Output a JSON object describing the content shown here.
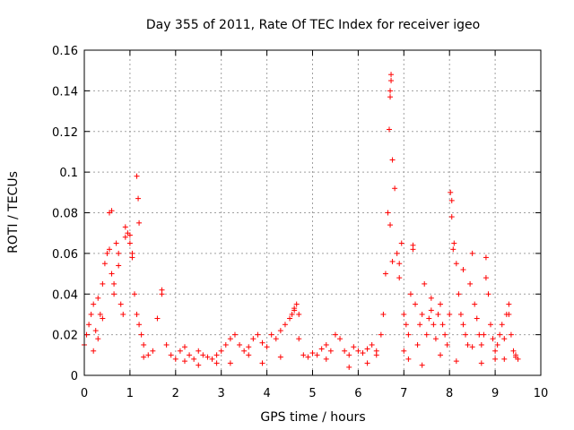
{
  "chart_data": {
    "type": "scatter",
    "title": "Day 355 of 2011, Rate Of TEC Index for receiver igeo",
    "xlabel": "GPS time / hours",
    "ylabel": "ROTI / TECUs",
    "xlim": [
      0,
      10
    ],
    "ylim": [
      0,
      0.16
    ],
    "xticks": [
      0,
      1,
      2,
      3,
      4,
      5,
      6,
      7,
      8,
      9,
      10
    ],
    "xtick_labels": [
      "0",
      "1",
      "2",
      "3",
      "4",
      "5",
      "6",
      "7",
      "8",
      "9",
      "10"
    ],
    "yticks": [
      0,
      0.02,
      0.04,
      0.06,
      0.08,
      0.1,
      0.12,
      0.14,
      0.16
    ],
    "ytick_labels": [
      "0",
      "0.02",
      "0.04",
      "0.06",
      "0.08",
      "0.1",
      "0.12",
      "0.14",
      "0.16"
    ],
    "grid": true,
    "marker": "+",
    "color": "#ff0000",
    "series": [
      {
        "name": "ROTI",
        "x": [
          0.0,
          0.05,
          0.1,
          0.15,
          0.2,
          0.25,
          0.3,
          0.35,
          0.4,
          0.45,
          0.5,
          0.55,
          0.6,
          0.65,
          0.7,
          0.75,
          0.8,
          0.85,
          0.9,
          0.95,
          1.0,
          1.05,
          1.1,
          1.15,
          1.2,
          1.25,
          1.3,
          1.4,
          1.5,
          1.6,
          1.7,
          1.8,
          1.9,
          2.0,
          2.1,
          2.2,
          2.3,
          2.4,
          2.5,
          2.6,
          2.7,
          2.8,
          2.9,
          3.0,
          3.1,
          3.2,
          3.3,
          3.4,
          3.5,
          3.6,
          3.7,
          3.8,
          3.9,
          4.0,
          4.1,
          4.2,
          4.3,
          4.4,
          4.5,
          4.55,
          4.6,
          4.65,
          4.7,
          4.8,
          4.9,
          5.0,
          5.1,
          5.2,
          5.3,
          5.4,
          5.5,
          5.6,
          5.7,
          5.8,
          5.9,
          6.0,
          6.1,
          6.2,
          6.3,
          6.4,
          6.5,
          6.55,
          6.6,
          6.65,
          6.7,
          6.72,
          6.75,
          6.8,
          6.85,
          6.9,
          6.95,
          7.0,
          7.05,
          7.1,
          7.15,
          7.2,
          7.25,
          7.3,
          7.35,
          7.4,
          7.45,
          7.5,
          7.55,
          7.6,
          7.65,
          7.7,
          7.75,
          7.8,
          7.85,
          7.9,
          7.95,
          8.0,
          8.02,
          8.05,
          8.1,
          8.15,
          8.2,
          8.25,
          8.3,
          8.35,
          8.4,
          8.45,
          8.5,
          8.55,
          8.6,
          8.65,
          8.7,
          8.75,
          8.8,
          8.85,
          8.9,
          8.95,
          9.0,
          9.05,
          9.1,
          9.15,
          9.2,
          9.25,
          9.3,
          9.35,
          9.4,
          9.45,
          9.5,
          0.6,
          0.9,
          1.0,
          1.15,
          1.18,
          0.55,
          0.65,
          0.75,
          1.05,
          1.2,
          0.4,
          0.3,
          1.7,
          4.6,
          4.7,
          6.68,
          6.7,
          6.72,
          6.7,
          6.75,
          6.9,
          7.2,
          7.6,
          8.05,
          8.08,
          8.3,
          8.8,
          9.3,
          7.0,
          7.8,
          8.5,
          9.0,
          0.2,
          2.5,
          3.2,
          3.6,
          5.3,
          6.2,
          7.4,
          8.7,
          9.2,
          1.3,
          2.2,
          2.9,
          3.9,
          4.3,
          5.8,
          6.4,
          7.1,
          8.15,
          9.45
        ],
        "y": [
          0.015,
          0.02,
          0.025,
          0.03,
          0.035,
          0.022,
          0.018,
          0.03,
          0.045,
          0.055,
          0.06,
          0.08,
          0.05,
          0.04,
          0.065,
          0.06,
          0.035,
          0.03,
          0.068,
          0.07,
          0.065,
          0.058,
          0.04,
          0.03,
          0.025,
          0.02,
          0.015,
          0.01,
          0.012,
          0.028,
          0.04,
          0.015,
          0.01,
          0.008,
          0.012,
          0.014,
          0.01,
          0.008,
          0.012,
          0.01,
          0.009,
          0.008,
          0.006,
          0.012,
          0.015,
          0.018,
          0.02,
          0.015,
          0.012,
          0.014,
          0.018,
          0.02,
          0.016,
          0.014,
          0.02,
          0.018,
          0.022,
          0.025,
          0.028,
          0.03,
          0.033,
          0.035,
          0.03,
          0.01,
          0.009,
          0.011,
          0.01,
          0.013,
          0.015,
          0.012,
          0.02,
          0.018,
          0.012,
          0.01,
          0.014,
          0.012,
          0.011,
          0.013,
          0.015,
          0.012,
          0.02,
          0.03,
          0.05,
          0.08,
          0.14,
          0.148,
          0.106,
          0.092,
          0.06,
          0.055,
          0.065,
          0.03,
          0.025,
          0.02,
          0.04,
          0.062,
          0.035,
          0.015,
          0.025,
          0.03,
          0.045,
          0.02,
          0.028,
          0.032,
          0.025,
          0.018,
          0.03,
          0.035,
          0.025,
          0.02,
          0.015,
          0.03,
          0.09,
          0.078,
          0.065,
          0.055,
          0.04,
          0.03,
          0.025,
          0.02,
          0.015,
          0.045,
          0.06,
          0.035,
          0.028,
          0.02,
          0.015,
          0.02,
          0.058,
          0.04,
          0.025,
          0.018,
          0.012,
          0.015,
          0.02,
          0.025,
          0.018,
          0.03,
          0.035,
          0.02,
          0.012,
          0.01,
          0.008,
          0.081,
          0.073,
          0.069,
          0.098,
          0.087,
          0.062,
          0.045,
          0.054,
          0.06,
          0.075,
          0.028,
          0.038,
          0.042,
          0.032,
          0.018,
          0.121,
          0.137,
          0.145,
          0.074,
          0.056,
          0.048,
          0.064,
          0.038,
          0.086,
          0.062,
          0.052,
          0.048,
          0.03,
          0.012,
          0.01,
          0.014,
          0.008,
          0.012,
          0.005,
          0.006,
          0.01,
          0.008,
          0.006,
          0.005,
          0.006,
          0.008,
          0.009,
          0.007,
          0.01,
          0.006,
          0.009,
          0.004,
          0.01,
          0.008,
          0.007,
          0.009
        ]
      }
    ]
  }
}
